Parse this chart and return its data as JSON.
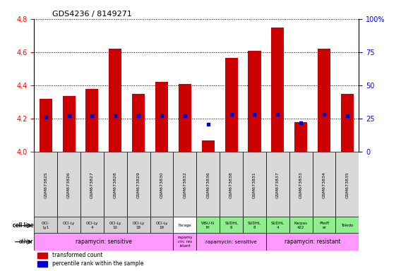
{
  "title": "GDS4236 / 8149271",
  "samples": [
    "GSM673825",
    "GSM673826",
    "GSM673827",
    "GSM673828",
    "GSM673829",
    "GSM673830",
    "GSM673832",
    "GSM673836",
    "GSM673838",
    "GSM673831",
    "GSM673837",
    "GSM673833",
    "GSM673834",
    "GSM673835"
  ],
  "transformed_count": [
    4.32,
    4.335,
    4.38,
    4.62,
    4.35,
    4.42,
    4.41,
    4.07,
    4.565,
    4.61,
    4.75,
    4.18,
    4.62,
    4.35
  ],
  "percentile_rank": [
    26,
    27,
    27,
    27,
    27,
    27,
    27,
    21,
    28,
    28,
    28,
    22,
    28,
    27
  ],
  "bar_bottom": 4.0,
  "ylim": [
    4.0,
    4.8
  ],
  "y2lim": [
    0,
    100
  ],
  "yticks": [
    4.0,
    4.2,
    4.4,
    4.6,
    4.8
  ],
  "y2ticks": [
    0,
    25,
    50,
    75,
    100
  ],
  "y2tick_labels": [
    "0",
    "25",
    "50",
    "75",
    "100%"
  ],
  "bar_color": "#cc0000",
  "dot_color": "#0000cc",
  "cell_line_labels": [
    "OCI-\nLy1",
    "OCI-Ly\n3",
    "OCI-Ly\n4",
    "OCI-Ly\n10",
    "OCI-Ly\n18",
    "OCI-Ly\n19",
    "Farage",
    "WSU-N\nIH",
    "SUDHL\n6",
    "SUDHL\n8",
    "SUDHL\n4",
    "Karpas\n422",
    "Pfeiff\ner",
    "Toledo"
  ],
  "cell_line_colors": [
    "#d0d0d0",
    "#d0d0d0",
    "#d0d0d0",
    "#d0d0d0",
    "#d0d0d0",
    "#d0d0d0",
    "#ffffff",
    "#90ee90",
    "#90ee90",
    "#90ee90",
    "#90ee90",
    "#90ee90",
    "#90ee90",
    "#90ee90"
  ],
  "other_groups": [
    {
      "start": 0,
      "end": 5,
      "text": "rapamycin: sensitive",
      "color": "#ff99ff",
      "fontsize": 5.5
    },
    {
      "start": 6,
      "end": 6,
      "text": "rapamy\ncin: res\nistant",
      "color": "#ff99ff",
      "fontsize": 4
    },
    {
      "start": 7,
      "end": 9,
      "text": "rapamycin: sensitive",
      "color": "#ff99ff",
      "fontsize": 5
    },
    {
      "start": 10,
      "end": 13,
      "text": "rapamycin: resistant",
      "color": "#ff99ff",
      "fontsize": 5.5
    }
  ]
}
